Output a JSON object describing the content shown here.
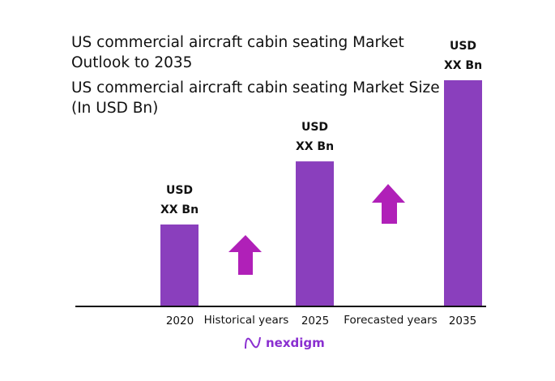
{
  "chart_data": {
    "type": "bar",
    "title": "US commercial aircraft cabin seating Market Outlook to 2035",
    "subtitle": "US commercial aircraft cabin seating Market Size (In USD Bn)",
    "categories": [
      "2020",
      "2025",
      "2035"
    ],
    "relative_values": [
      0.36,
      0.64,
      1.0
    ],
    "data_labels": [
      [
        "USD",
        "XX Bn"
      ],
      [
        "USD",
        "XX Bn"
      ],
      [
        "USD",
        "XX Bn"
      ]
    ],
    "period_labels": [
      "Historical years",
      "Forecasted years"
    ],
    "bar_color": "#8a3fbd",
    "arrow_color": "#b020b8",
    "grid": false
  },
  "brand": {
    "name": "nexdigm",
    "color": "#8a2fd0"
  }
}
